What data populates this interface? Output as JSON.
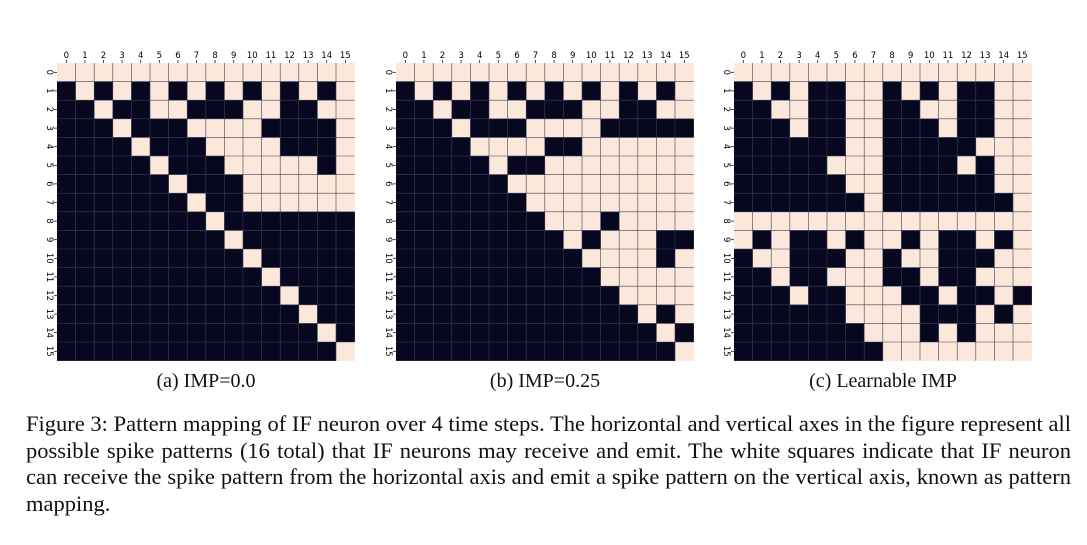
{
  "chart_data": [
    {
      "type": "heatmap",
      "subcaption": "(a) IMP=0.0",
      "x_ticks": [
        "0",
        "1",
        "2",
        "3",
        "4",
        "5",
        "6",
        "7",
        "8",
        "9",
        "10",
        "11",
        "12",
        "13",
        "14",
        "15"
      ],
      "y_ticks": [
        "0",
        "1",
        "2",
        "3",
        "4",
        "5",
        "6",
        "7",
        "8",
        "9",
        "10",
        "11",
        "12",
        "13",
        "14",
        "15"
      ],
      "colors": {
        "mapped": "#fbe8da",
        "unmapped": "#070720"
      },
      "grid": true,
      "matrix": [
        "1111111111111111",
        "0101010101010101",
        "0010011000110011",
        "0001000111100001",
        "0000100011110001",
        "0000010001111101",
        "0000001000111111",
        "0000000100111111",
        "0000000010000000",
        "0000000001000000",
        "0000000000100000",
        "0000000000010000",
        "0000000000001000",
        "0000000000000100",
        "0000000000000010",
        "0000000000000001"
      ]
    },
    {
      "type": "heatmap",
      "subcaption": "(b) IMP=0.25",
      "x_ticks": [
        "0",
        "1",
        "2",
        "3",
        "4",
        "5",
        "6",
        "7",
        "8",
        "9",
        "10",
        "11",
        "12",
        "13",
        "14",
        "15"
      ],
      "y_ticks": [
        "0",
        "1",
        "2",
        "3",
        "4",
        "5",
        "6",
        "7",
        "8",
        "9",
        "10",
        "11",
        "12",
        "13",
        "14",
        "15"
      ],
      "colors": {
        "mapped": "#fbe8da",
        "unmapped": "#070720"
      },
      "grid": true,
      "matrix": [
        "1111111111111111",
        "0101010101010101",
        "0010011000110011",
        "0001000111100000",
        "0000111100111111",
        "0000010011111111",
        "0000001111111111",
        "0000000111111111",
        "0000000011101111",
        "0000000001011100",
        "0000000000111101",
        "0000000000011111",
        "0000000000001111",
        "0000000000000101",
        "0000000000000010",
        "0000000000000001"
      ]
    },
    {
      "type": "heatmap",
      "subcaption": "(c) Learnable IMP",
      "x_ticks": [
        "0",
        "1",
        "2",
        "3",
        "4",
        "5",
        "6",
        "7",
        "8",
        "9",
        "10",
        "11",
        "12",
        "13",
        "14",
        "15"
      ],
      "y_ticks": [
        "0",
        "1",
        "2",
        "3",
        "4",
        "5",
        "6",
        "7",
        "8",
        "9",
        "10",
        "11",
        "12",
        "13",
        "14",
        "15"
      ],
      "colors": {
        "mapped": "#fbe8da",
        "unmapped": "#070720"
      },
      "grid": true,
      "matrix": [
        "1111111111111111",
        "0101001101010011",
        "0011001100110011",
        "0001001100010011",
        "0000001100000111",
        "0000011100001011",
        "0000001100000011",
        "0000000100000001",
        "1111111111111111",
        "1010010110100101",
        "0110001101100011",
        "0010011100100111",
        "0001001110010010",
        "0000001111000101",
        "0000000111010111",
        "0000000011111111"
      ]
    }
  ],
  "figure_caption": "Figure 3: Pattern mapping of IF neuron over 4 time steps. The horizontal and vertical axes in the figure represent all possible spike patterns (16 total) that IF neurons may receive and emit. The white squares indicate that IF neuron can receive the spike pattern from the horizontal axis and emit a spike pattern on the vertical axis, known as pattern mapping."
}
